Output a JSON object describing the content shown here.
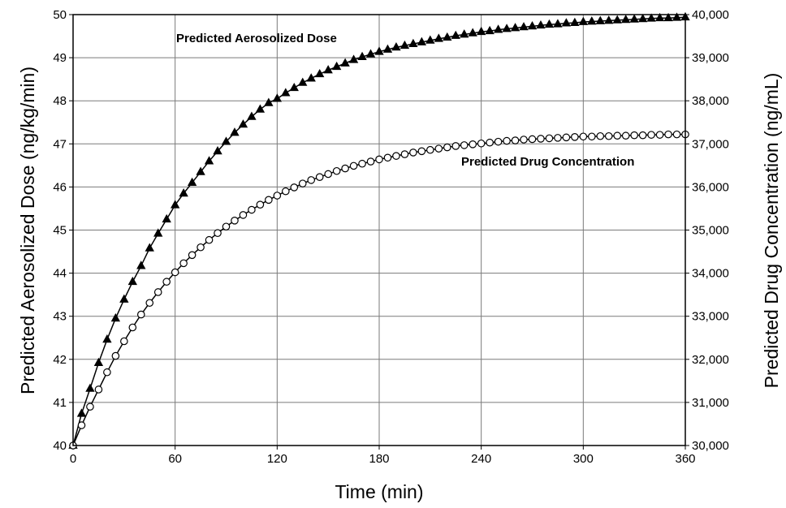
{
  "chart_data": {
    "type": "line",
    "xlabel": "Time (min)",
    "ylabel_left": "Predicted Aerosolized Dose (ng/kg/min)",
    "ylabel_right": "Predicted Drug Concentration (ng/mL)",
    "xlim": [
      0,
      360
    ],
    "ylim_left": [
      40,
      50
    ],
    "ylim_right": [
      30000,
      40000
    ],
    "x_ticks": [
      "0",
      "60",
      "120",
      "180",
      "240",
      "300",
      "360"
    ],
    "y_left_ticks": [
      "40",
      "41",
      "42",
      "43",
      "44",
      "45",
      "46",
      "47",
      "48",
      "49",
      "50"
    ],
    "y_right_ticks": [
      "30,000",
      "31,000",
      "32,000",
      "33,000",
      "34,000",
      "35,000",
      "36,000",
      "37,000",
      "38,000",
      "39,000",
      "40,000"
    ],
    "grid": true,
    "annotations": [
      {
        "text": "Predicted Aerosolized Dose",
        "series": 0
      },
      {
        "text": "Predicted Drug Concentration",
        "series": 1
      }
    ],
    "series": [
      {
        "name": "Predicted Aerosolized Dose",
        "axis": "left",
        "marker": "filled-triangle",
        "x": [
          0,
          5,
          10,
          15,
          20,
          25,
          30,
          35,
          40,
          45,
          50,
          55,
          60,
          65,
          70,
          75,
          80,
          85,
          90,
          95,
          100,
          105,
          110,
          115,
          120,
          125,
          130,
          135,
          140,
          145,
          150,
          155,
          160,
          165,
          170,
          175,
          180,
          185,
          190,
          195,
          200,
          205,
          210,
          215,
          220,
          225,
          230,
          235,
          240,
          245,
          250,
          255,
          260,
          265,
          270,
          275,
          280,
          285,
          290,
          295,
          300,
          305,
          310,
          315,
          320,
          325,
          330,
          335,
          340,
          345,
          350,
          355,
          360
        ],
        "y": [
          40.0,
          40.74,
          41.32,
          41.92,
          42.46,
          42.95,
          43.39,
          43.8,
          44.17,
          44.58,
          44.92,
          45.25,
          45.58,
          45.85,
          46.1,
          46.35,
          46.6,
          46.83,
          47.05,
          47.26,
          47.45,
          47.63,
          47.8,
          47.95,
          48.05,
          48.18,
          48.3,
          48.42,
          48.52,
          48.62,
          48.71,
          48.79,
          48.87,
          48.95,
          49.02,
          49.08,
          49.14,
          49.19,
          49.24,
          49.28,
          49.32,
          49.36,
          49.4,
          49.44,
          49.47,
          49.51,
          49.54,
          49.57,
          49.6,
          49.62,
          49.65,
          49.67,
          49.69,
          49.71,
          49.73,
          49.75,
          49.77,
          49.78,
          49.8,
          49.81,
          49.83,
          49.84,
          49.85,
          49.86,
          49.87,
          49.88,
          49.89,
          49.9,
          49.91,
          49.92,
          49.92,
          49.93,
          49.94
        ]
      },
      {
        "name": "Predicted Drug Concentration",
        "axis": "right",
        "marker": "open-circle",
        "x": [
          0,
          5,
          10,
          15,
          20,
          25,
          30,
          35,
          40,
          45,
          50,
          55,
          60,
          65,
          70,
          75,
          80,
          85,
          90,
          95,
          100,
          105,
          110,
          115,
          120,
          125,
          130,
          135,
          140,
          145,
          150,
          155,
          160,
          165,
          170,
          175,
          180,
          185,
          190,
          195,
          200,
          205,
          210,
          215,
          220,
          225,
          230,
          235,
          240,
          245,
          250,
          255,
          260,
          265,
          270,
          275,
          280,
          285,
          290,
          295,
          300,
          305,
          310,
          315,
          320,
          325,
          330,
          335,
          340,
          345,
          350,
          355,
          360
        ],
        "y": [
          30000,
          30470,
          30900,
          31300,
          31700,
          32080,
          32420,
          32740,
          33040,
          33310,
          33560,
          33800,
          34020,
          34230,
          34420,
          34600,
          34770,
          34930,
          35080,
          35220,
          35350,
          35470,
          35590,
          35700,
          35800,
          35900,
          35990,
          36080,
          36160,
          36230,
          36300,
          36370,
          36430,
          36490,
          36540,
          36590,
          36640,
          36680,
          36720,
          36760,
          36800,
          36830,
          36860,
          36890,
          36920,
          36950,
          36970,
          36990,
          37010,
          37030,
          37050,
          37070,
          37080,
          37100,
          37110,
          37120,
          37130,
          37140,
          37150,
          37160,
          37170,
          37170,
          37180,
          37180,
          37190,
          37190,
          37200,
          37200,
          37210,
          37210,
          37220,
          37220,
          37220
        ]
      }
    ]
  }
}
